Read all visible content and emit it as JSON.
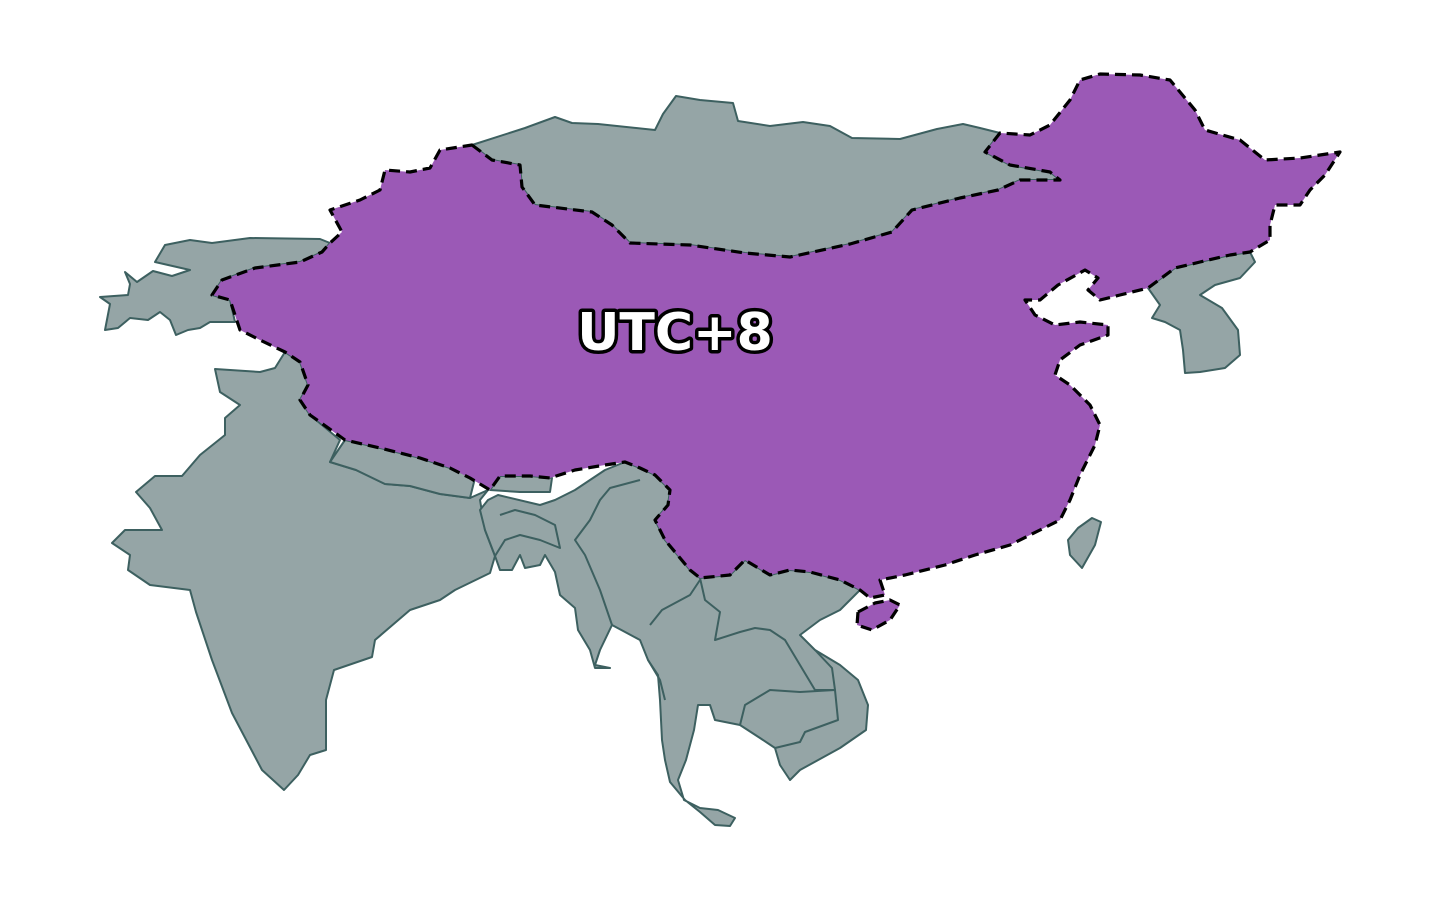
{
  "map": {
    "highlight_region": {
      "label": "UTC+8",
      "fill_color": "#9b59b6",
      "border_style": "dashed"
    },
    "base_color": "#95a5a6",
    "base_border_color": "#3d6060"
  }
}
